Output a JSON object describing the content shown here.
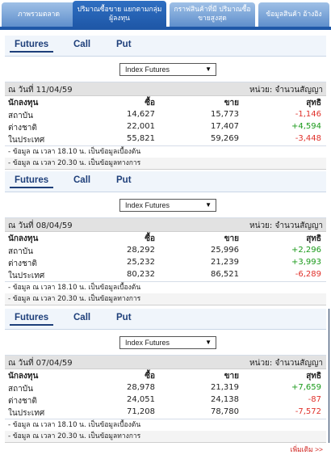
{
  "top_tabs": [
    {
      "label": "ภาพรวมตลาด"
    },
    {
      "label": "ปริมาณซื้อขาย แยกตามกลุ่มผู้ลงทุน"
    },
    {
      "label": "กราฟสินค้าที่มี ปริมาณซื้อขายสูงสุด"
    },
    {
      "label": "ข้อมูลสินค้า อ้างอิง"
    }
  ],
  "panels": [
    {
      "tabs": {
        "futures": "Futures",
        "call": "Call",
        "put": "Put"
      },
      "select_value": "Index Futures",
      "date_label": "ณ วันที่ 11/04/59",
      "unit_label": "หน่วย: จำนวนสัญญา",
      "headers": {
        "investor": "นักลงทุน",
        "buy": "ซื้อ",
        "sell": "ขาย",
        "net": "สุทธิ"
      },
      "rows": [
        {
          "name": "สถาบัน",
          "buy": "14,627",
          "sell": "15,773",
          "net": "-1,146"
        },
        {
          "name": "ต่างชาติ",
          "buy": "22,001",
          "sell": "17,407",
          "net": "+4,594"
        },
        {
          "name": "ในประเทศ",
          "buy": "55,821",
          "sell": "59,269",
          "net": "-3,448"
        }
      ],
      "notes": [
        "- ข้อมูล ณ เวลา 18.10 น. เป็นข้อมูลเบื้องต้น",
        "- ข้อมูล ณ เวลา 20.30 น. เป็นข้อมูลทางการ"
      ]
    },
    {
      "tabs": {
        "futures": "Futures",
        "call": "Call",
        "put": "Put"
      },
      "select_value": "Index Futures",
      "date_label": "ณ วันที่ 08/04/59",
      "unit_label": "หน่วย: จำนวนสัญญา",
      "headers": {
        "investor": "นักลงทุน",
        "buy": "ซื้อ",
        "sell": "ขาย",
        "net": "สุทธิ"
      },
      "rows": [
        {
          "name": "สถาบัน",
          "buy": "28,292",
          "sell": "25,996",
          "net": "+2,296"
        },
        {
          "name": "ต่างชาติ",
          "buy": "25,232",
          "sell": "21,239",
          "net": "+3,993"
        },
        {
          "name": "ในประเทศ",
          "buy": "80,232",
          "sell": "86,521",
          "net": "-6,289"
        }
      ],
      "notes": [
        "- ข้อมูล ณ เวลา 18.10 น. เป็นข้อมูลเบื้องต้น",
        "- ข้อมูล ณ เวลา 20.30 น. เป็นข้อมูลทางการ"
      ]
    },
    {
      "tabs": {
        "futures": "Futures",
        "call": "Call",
        "put": "Put"
      },
      "select_value": "Index Futures",
      "date_label": "ณ วันที่ 07/04/59",
      "unit_label": "หน่วย: จำนวนสัญญา",
      "headers": {
        "investor": "นักลงทุน",
        "buy": "ซื้อ",
        "sell": "ขาย",
        "net": "สุทธิ"
      },
      "rows": [
        {
          "name": "สถาบัน",
          "buy": "28,978",
          "sell": "21,319",
          "net": "+7,659"
        },
        {
          "name": "ต่างชาติ",
          "buy": "24,051",
          "sell": "24,138",
          "net": "-87"
        },
        {
          "name": "ในประเทศ",
          "buy": "71,208",
          "sell": "78,780",
          "net": "-7,572"
        }
      ],
      "notes": [
        "- ข้อมูล ณ เวลา 18.10 น. เป็นข้อมูลเบื้องต้น",
        "- ข้อมูล ณ เวลา 20.30 น. เป็นข้อมูลทางการ"
      ]
    }
  ],
  "more_link": "เพิ่มเติม >>",
  "colors": {
    "positive": "#1a9a1a",
    "negative": "#e0312b",
    "tab_active": "#1f58a8",
    "subtab_text": "#1e3f7a"
  }
}
